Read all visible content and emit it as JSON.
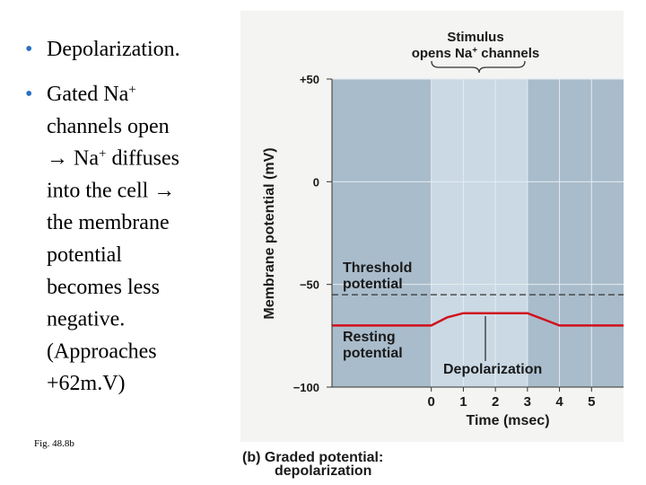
{
  "slide": {
    "bullet_1": "Depolarization.",
    "bullet_2": [
      [
        "Gated Na",
        "+"
      ],
      [
        "channels open"
      ],
      [
        "→ Na",
        "+",
        " diffuses"
      ],
      [
        "into the cell →"
      ],
      [
        "the membrane"
      ],
      [
        "potential"
      ],
      [
        "becomes less"
      ],
      [
        "negative."
      ],
      [
        "(Approaches"
      ],
      [
        "+62m.V)"
      ]
    ],
    "figure_ref": "Fig. 48.8b"
  },
  "chart_data": {
    "type": "line",
    "y_label": "Membrane potential (mV)",
    "x_label": "Time (msec)",
    "caption": [
      "(b) Graded potential:",
      "depolarization"
    ],
    "stimulus_label": [
      "Stimulus",
      "opens Na",
      "+",
      " channels"
    ],
    "threshold_label": [
      "Threshold",
      "potential"
    ],
    "resting_label": [
      "Resting",
      "potential"
    ],
    "depolarization_label": "Depolarization",
    "x": [
      -3.1,
      0,
      0.5,
      1,
      3,
      3.5,
      4,
      6
    ],
    "values": [
      -70,
      -70,
      -66,
      -64,
      -64,
      -67,
      -70,
      -70
    ],
    "color": "#d0101b",
    "threshold": -55,
    "resting": -70,
    "stimulus_window": [
      0,
      3
    ],
    "xlim": [
      -3.1,
      6
    ],
    "xticks": [
      0,
      1,
      2,
      3,
      4,
      5
    ],
    "ylim": [
      -100,
      50
    ],
    "yticks": [
      {
        "value": -100,
        "label": "−100"
      },
      {
        "value": -50,
        "label": "−50"
      },
      0,
      {
        "value": 50,
        "label": "+50"
      }
    ],
    "grid": true
  }
}
